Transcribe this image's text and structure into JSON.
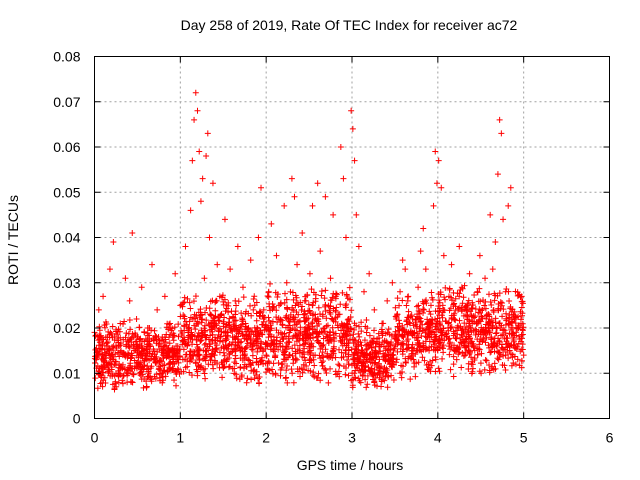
{
  "chart_data": {
    "type": "scatter",
    "title": "Day 258 of 2019, Rate Of TEC Index for receiver ac72",
    "xlabel": "GPS time / hours",
    "ylabel": "ROTI / TECUs",
    "xlim": [
      0,
      6
    ],
    "ylim": [
      0,
      0.08
    ],
    "xticks": [
      "0",
      "1",
      "2",
      "3",
      "4",
      "5",
      "6"
    ],
    "yticks": [
      "0",
      "0.01",
      "0.02",
      "0.03",
      "0.04",
      "0.05",
      "0.06",
      "0.07",
      "0.08"
    ],
    "grid": true,
    "marker": "+",
    "color": "#ff0000",
    "series": [
      {
        "name": "ROTI",
        "points": [
          [
            0.02,
            0.013
          ],
          [
            0.05,
            0.024
          ],
          [
            0.08,
            0.011
          ],
          [
            0.1,
            0.027
          ],
          [
            0.12,
            0.009
          ],
          [
            0.15,
            0.018
          ],
          [
            0.18,
            0.033
          ],
          [
            0.2,
            0.012
          ],
          [
            0.22,
            0.039
          ],
          [
            0.25,
            0.016
          ],
          [
            0.28,
            0.01
          ],
          [
            0.3,
            0.021
          ],
          [
            0.33,
            0.014
          ],
          [
            0.36,
            0.031
          ],
          [
            0.38,
            0.008
          ],
          [
            0.41,
            0.026
          ],
          [
            0.44,
            0.041
          ],
          [
            0.46,
            0.015
          ],
          [
            0.49,
            0.022
          ],
          [
            0.52,
            0.012
          ],
          [
            0.55,
            0.029
          ],
          [
            0.58,
            0.017
          ],
          [
            0.61,
            0.011
          ],
          [
            0.64,
            0.02
          ],
          [
            0.67,
            0.034
          ],
          [
            0.7,
            0.013
          ],
          [
            0.73,
            0.024
          ],
          [
            0.76,
            0.009
          ],
          [
            0.79,
            0.018
          ],
          [
            0.82,
            0.027
          ],
          [
            0.85,
            0.014
          ],
          [
            0.88,
            0.021
          ],
          [
            0.91,
            0.011
          ],
          [
            0.94,
            0.032
          ],
          [
            0.97,
            0.016
          ],
          [
            1.0,
            0.025
          ],
          [
            1.03,
            0.013
          ],
          [
            1.06,
            0.038
          ],
          [
            1.09,
            0.019
          ],
          [
            1.12,
            0.046
          ],
          [
            1.14,
            0.057
          ],
          [
            1.16,
            0.066
          ],
          [
            1.18,
            0.072
          ],
          [
            1.2,
            0.068
          ],
          [
            1.22,
            0.059
          ],
          [
            1.24,
            0.048
          ],
          [
            1.26,
            0.053
          ],
          [
            1.28,
            0.031
          ],
          [
            1.3,
            0.058
          ],
          [
            1.32,
            0.063
          ],
          [
            1.34,
            0.04
          ],
          [
            1.36,
            0.021
          ],
          [
            1.38,
            0.052
          ],
          [
            1.4,
            0.014
          ],
          [
            1.43,
            0.034
          ],
          [
            1.46,
            0.027
          ],
          [
            1.49,
            0.012
          ],
          [
            1.52,
            0.044
          ],
          [
            1.55,
            0.019
          ],
          [
            1.58,
            0.033
          ],
          [
            1.61,
            0.011
          ],
          [
            1.64,
            0.026
          ],
          [
            1.67,
            0.038
          ],
          [
            1.7,
            0.015
          ],
          [
            1.73,
            0.029
          ],
          [
            1.76,
            0.021
          ],
          [
            1.79,
            0.013
          ],
          [
            1.82,
            0.035
          ],
          [
            1.85,
            0.024
          ],
          [
            1.88,
            0.017
          ],
          [
            1.91,
            0.04
          ],
          [
            1.94,
            0.051
          ],
          [
            1.97,
            0.022
          ],
          [
            2.0,
            0.014
          ],
          [
            2.03,
            0.028
          ],
          [
            2.06,
            0.043
          ],
          [
            2.09,
            0.018
          ],
          [
            2.12,
            0.036
          ],
          [
            2.15,
            0.025
          ],
          [
            2.18,
            0.012
          ],
          [
            2.21,
            0.047
          ],
          [
            2.24,
            0.03
          ],
          [
            2.27,
            0.019
          ],
          [
            2.3,
            0.053
          ],
          [
            2.33,
            0.049
          ],
          [
            2.36,
            0.034
          ],
          [
            2.39,
            0.015
          ],
          [
            2.42,
            0.041
          ],
          [
            2.45,
            0.026
          ],
          [
            2.48,
            0.02
          ],
          [
            2.51,
            0.032
          ],
          [
            2.54,
            0.047
          ],
          [
            2.57,
            0.014
          ],
          [
            2.6,
            0.052
          ],
          [
            2.63,
            0.037
          ],
          [
            2.66,
            0.023
          ],
          [
            2.69,
            0.049
          ],
          [
            2.72,
            0.018
          ],
          [
            2.75,
            0.031
          ],
          [
            2.78,
            0.045
          ],
          [
            2.81,
            0.027
          ],
          [
            2.84,
            0.012
          ],
          [
            2.87,
            0.06
          ],
          [
            2.9,
            0.053
          ],
          [
            2.93,
            0.04
          ],
          [
            2.96,
            0.022
          ],
          [
            2.99,
            0.068
          ],
          [
            3.01,
            0.064
          ],
          [
            3.03,
            0.057
          ],
          [
            3.05,
            0.045
          ],
          [
            3.08,
            0.038
          ],
          [
            3.11,
            0.015
          ],
          [
            3.14,
            0.028
          ],
          [
            3.17,
            0.019
          ],
          [
            3.2,
            0.032
          ],
          [
            3.23,
            0.011
          ],
          [
            3.26,
            0.024
          ],
          [
            3.29,
            0.017
          ],
          [
            3.32,
            0.009
          ],
          [
            3.35,
            0.021
          ],
          [
            3.38,
            0.014
          ],
          [
            3.41,
            0.026
          ],
          [
            3.44,
            0.012
          ],
          [
            3.47,
            0.03
          ],
          [
            3.5,
            0.018
          ],
          [
            3.53,
            0.023
          ],
          [
            3.56,
            0.028
          ],
          [
            3.59,
            0.035
          ],
          [
            3.62,
            0.033
          ],
          [
            3.65,
            0.026
          ],
          [
            3.68,
            0.019
          ],
          [
            3.71,
            0.015
          ],
          [
            3.74,
            0.022
          ],
          [
            3.77,
            0.029
          ],
          [
            3.8,
            0.037
          ],
          [
            3.83,
            0.042
          ],
          [
            3.86,
            0.033
          ],
          [
            3.89,
            0.012
          ],
          [
            3.92,
            0.025
          ],
          [
            3.95,
            0.047
          ],
          [
            3.97,
            0.059
          ],
          [
            3.99,
            0.052
          ],
          [
            4.01,
            0.057
          ],
          [
            4.04,
            0.051
          ],
          [
            4.07,
            0.036
          ],
          [
            4.1,
            0.018
          ],
          [
            4.13,
            0.027
          ],
          [
            4.16,
            0.034
          ],
          [
            4.19,
            0.022
          ],
          [
            4.22,
            0.013
          ],
          [
            4.25,
            0.038
          ],
          [
            4.28,
            0.029
          ],
          [
            4.31,
            0.017
          ],
          [
            4.34,
            0.025
          ],
          [
            4.37,
            0.032
          ],
          [
            4.4,
            0.021
          ],
          [
            4.43,
            0.015
          ],
          [
            4.46,
            0.028
          ],
          [
            4.49,
            0.036
          ],
          [
            4.52,
            0.024
          ],
          [
            4.55,
            0.031
          ],
          [
            4.58,
            0.019
          ],
          [
            4.61,
            0.045
          ],
          [
            4.64,
            0.033
          ],
          [
            4.67,
            0.039
          ],
          [
            4.7,
            0.054
          ],
          [
            4.72,
            0.066
          ],
          [
            4.74,
            0.063
          ],
          [
            4.76,
            0.044
          ],
          [
            4.79,
            0.028
          ],
          [
            4.82,
            0.047
          ],
          [
            4.85,
            0.051
          ],
          [
            4.88,
            0.023
          ],
          [
            4.91,
            0.012
          ],
          [
            4.94,
            0.02
          ],
          [
            4.97,
            0.017
          ],
          [
            5.0,
            0.014
          ]
        ],
        "band_ranges": [
          {
            "from": 0.0,
            "to": 1.0,
            "low": 0.006,
            "high": 0.022
          },
          {
            "from": 1.0,
            "to": 2.0,
            "low": 0.007,
            "high": 0.028
          },
          {
            "from": 2.0,
            "to": 3.0,
            "low": 0.007,
            "high": 0.03
          },
          {
            "from": 3.0,
            "to": 3.5,
            "low": 0.006,
            "high": 0.022
          },
          {
            "from": 3.5,
            "to": 4.0,
            "low": 0.008,
            "high": 0.028
          },
          {
            "from": 4.0,
            "to": 5.0,
            "low": 0.009,
            "high": 0.03
          }
        ],
        "band_density": 520
      }
    ]
  }
}
